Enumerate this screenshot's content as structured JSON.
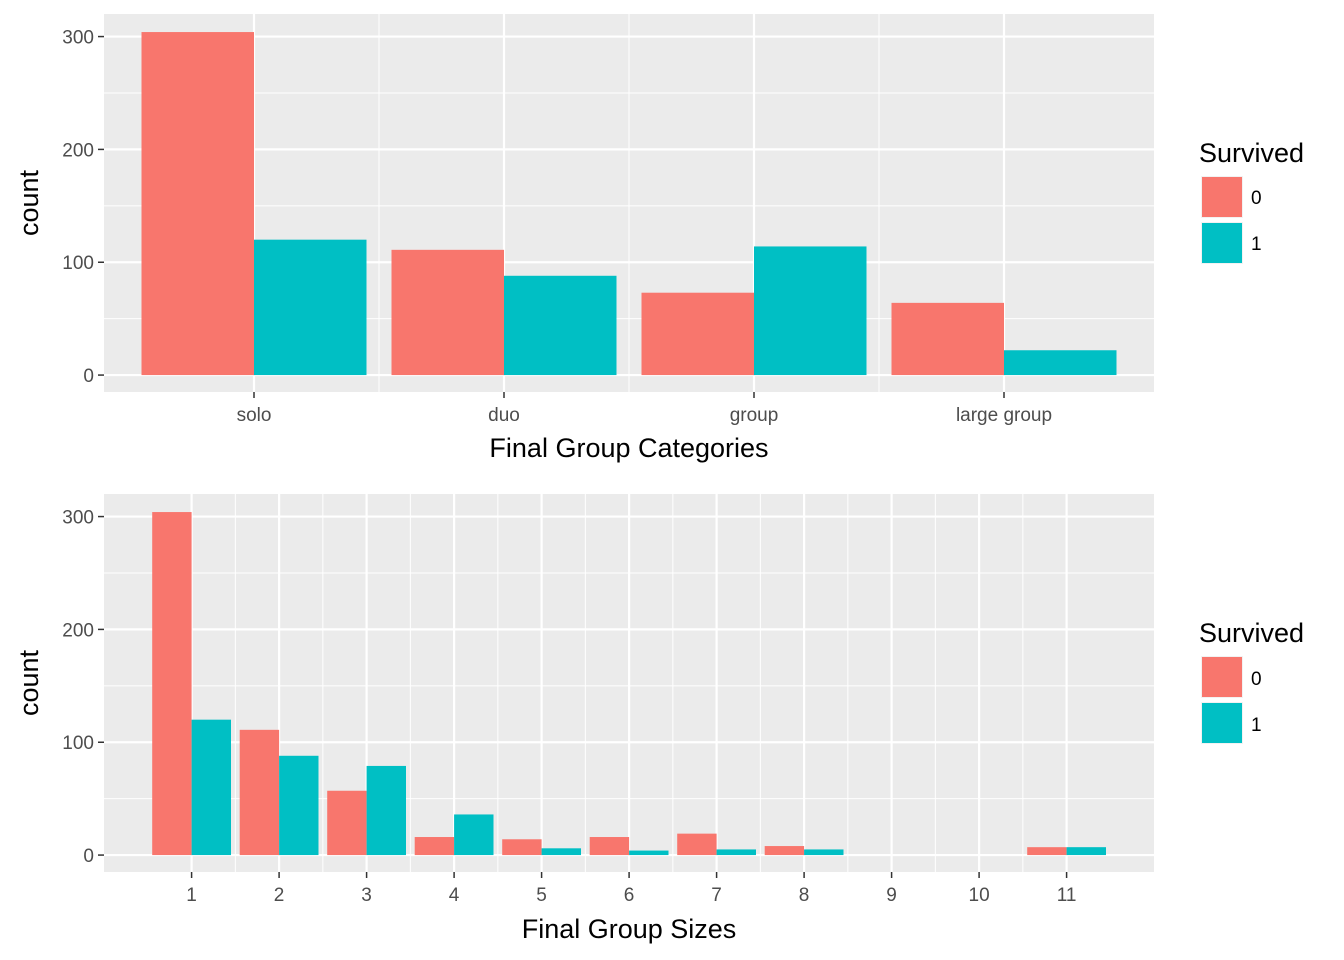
{
  "legend": {
    "title": "Survived",
    "items": [
      {
        "label": "0",
        "color": "#F8766D"
      },
      {
        "label": "1",
        "color": "#00BFC4"
      }
    ]
  },
  "chart_data": [
    {
      "type": "bar",
      "position": "dodge",
      "xlabel": "Final Group Categories",
      "ylabel": "count",
      "categories": [
        "solo",
        "duo",
        "group",
        "large group"
      ],
      "series": [
        {
          "name": "0",
          "color": "#F8766D",
          "values": [
            304,
            111,
            73,
            64
          ]
        },
        {
          "name": "1",
          "color": "#00BFC4",
          "values": [
            120,
            88,
            114,
            22
          ]
        }
      ],
      "ylim": [
        -15,
        320
      ],
      "yticks": [
        0,
        100,
        200,
        300
      ],
      "grid": true,
      "legend_position": "right"
    },
    {
      "type": "bar",
      "position": "dodge",
      "xlabel": "Final Group Sizes",
      "ylabel": "count",
      "categories": [
        "1",
        "2",
        "3",
        "4",
        "5",
        "6",
        "7",
        "8",
        "9",
        "10",
        "11"
      ],
      "series": [
        {
          "name": "0",
          "color": "#F8766D",
          "values": [
            304,
            111,
            57,
            16,
            14,
            16,
            19,
            8,
            0,
            0,
            7
          ]
        },
        {
          "name": "1",
          "color": "#00BFC4",
          "values": [
            120,
            88,
            79,
            36,
            6,
            4,
            5,
            5,
            0,
            0,
            7
          ]
        }
      ],
      "ylim": [
        -15,
        320
      ],
      "yticks": [
        0,
        100,
        200,
        300
      ],
      "grid": true,
      "legend_position": "right"
    }
  ]
}
